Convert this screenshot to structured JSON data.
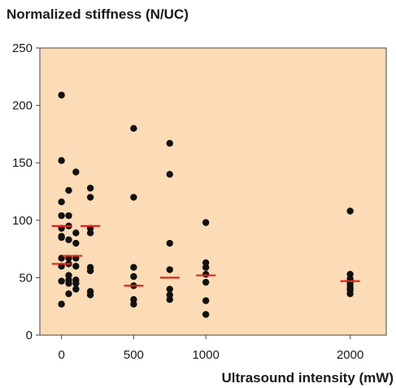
{
  "chart_data": {
    "type": "scatter",
    "ylabel": "Normalized stiffness (N/UC)",
    "xlabel": "Ultrasound intensity (mW)",
    "xlim": [
      -150,
      2250
    ],
    "ylim": [
      0,
      250
    ],
    "x_ticks": [
      0,
      500,
      1000,
      2000
    ],
    "y_ticks": [
      0,
      50,
      100,
      150,
      200,
      250
    ],
    "grid": false,
    "colors": {
      "background": "#fcdcb6",
      "points": "#111111",
      "median": "#e0241c"
    },
    "points": [
      {
        "x": 0,
        "y": 209
      },
      {
        "x": 0,
        "y": 152
      },
      {
        "x": 0,
        "y": 116
      },
      {
        "x": 0,
        "y": 104
      },
      {
        "x": 0,
        "y": 93
      },
      {
        "x": 0,
        "y": 86
      },
      {
        "x": 0,
        "y": 85
      },
      {
        "x": 0,
        "y": 67
      },
      {
        "x": 0,
        "y": 60
      },
      {
        "x": 0,
        "y": 47
      },
      {
        "x": 0,
        "y": 27
      },
      {
        "x": 50,
        "y": 126
      },
      {
        "x": 50,
        "y": 104
      },
      {
        "x": 50,
        "y": 95
      },
      {
        "x": 50,
        "y": 83
      },
      {
        "x": 50,
        "y": 67
      },
      {
        "x": 50,
        "y": 62
      },
      {
        "x": 50,
        "y": 52
      },
      {
        "x": 50,
        "y": 48
      },
      {
        "x": 50,
        "y": 45
      },
      {
        "x": 50,
        "y": 36
      },
      {
        "x": 100,
        "y": 142
      },
      {
        "x": 100,
        "y": 89
      },
      {
        "x": 100,
        "y": 80
      },
      {
        "x": 100,
        "y": 67
      },
      {
        "x": 100,
        "y": 60
      },
      {
        "x": 100,
        "y": 48
      },
      {
        "x": 100,
        "y": 45
      },
      {
        "x": 100,
        "y": 40
      },
      {
        "x": 200,
        "y": 128
      },
      {
        "x": 200,
        "y": 120
      },
      {
        "x": 200,
        "y": 93
      },
      {
        "x": 200,
        "y": 89
      },
      {
        "x": 200,
        "y": 59
      },
      {
        "x": 200,
        "y": 56
      },
      {
        "x": 200,
        "y": 38
      },
      {
        "x": 200,
        "y": 35
      },
      {
        "x": 500,
        "y": 180
      },
      {
        "x": 500,
        "y": 120
      },
      {
        "x": 500,
        "y": 59
      },
      {
        "x": 500,
        "y": 51
      },
      {
        "x": 500,
        "y": 43
      },
      {
        "x": 500,
        "y": 31
      },
      {
        "x": 500,
        "y": 27
      },
      {
        "x": 750,
        "y": 167
      },
      {
        "x": 750,
        "y": 140
      },
      {
        "x": 750,
        "y": 80
      },
      {
        "x": 750,
        "y": 57
      },
      {
        "x": 750,
        "y": 40
      },
      {
        "x": 750,
        "y": 35
      },
      {
        "x": 750,
        "y": 31
      },
      {
        "x": 1000,
        "y": 98
      },
      {
        "x": 1000,
        "y": 63
      },
      {
        "x": 1000,
        "y": 59
      },
      {
        "x": 1000,
        "y": 53
      },
      {
        "x": 1000,
        "y": 46
      },
      {
        "x": 1000,
        "y": 30
      },
      {
        "x": 1000,
        "y": 18
      },
      {
        "x": 2000,
        "y": 108
      },
      {
        "x": 2000,
        "y": 53
      },
      {
        "x": 2000,
        "y": 49
      },
      {
        "x": 2000,
        "y": 46
      },
      {
        "x": 2000,
        "y": 44
      },
      {
        "x": 2000,
        "y": 41
      },
      {
        "x": 2000,
        "y": 39
      },
      {
        "x": 2000,
        "y": 36
      }
    ],
    "medians": [
      {
        "x": 0,
        "y": 95
      },
      {
        "x": 0,
        "y": 62
      },
      {
        "x": 75,
        "y": 69
      },
      {
        "x": 200,
        "y": 95
      },
      {
        "x": 500,
        "y": 43
      },
      {
        "x": 750,
        "y": 50
      },
      {
        "x": 1000,
        "y": 52
      },
      {
        "x": 2000,
        "y": 47
      }
    ]
  }
}
